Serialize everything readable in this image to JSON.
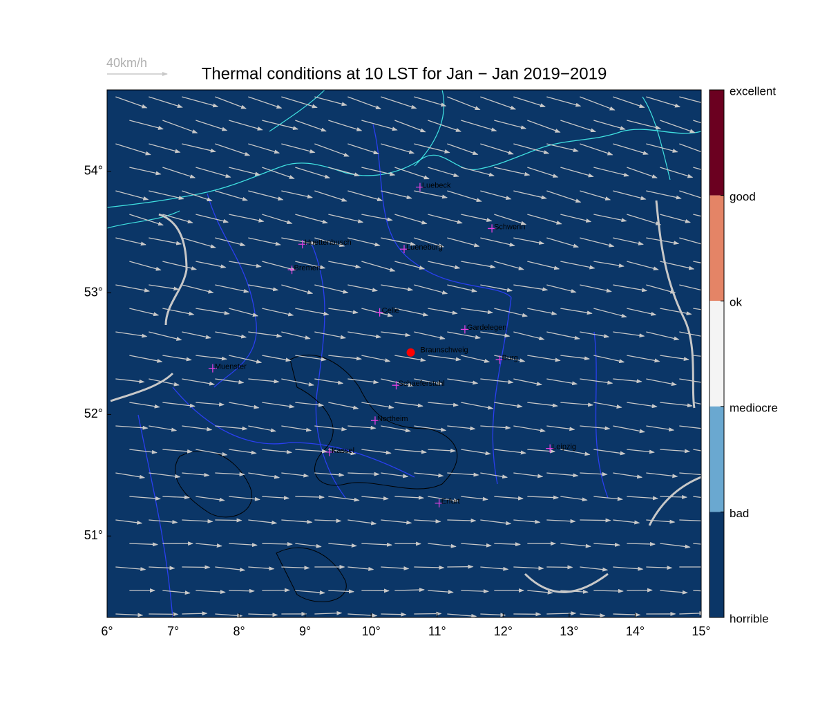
{
  "title": "Thermal conditions at 10 LST for Jan − Jan  2019−2019",
  "wind_legend": "40km/h",
  "map": {
    "xlim": [
      6,
      15
    ],
    "ylim": [
      50.33,
      54.67
    ],
    "xticks": [
      {
        "value": 6,
        "label": "6°"
      },
      {
        "value": 7,
        "label": "7°"
      },
      {
        "value": 8,
        "label": "8°"
      },
      {
        "value": 9,
        "label": "9°"
      },
      {
        "value": 10,
        "label": "10°"
      },
      {
        "value": 11,
        "label": "11°"
      },
      {
        "value": 12,
        "label": "12°"
      },
      {
        "value": 13,
        "label": "13°"
      },
      {
        "value": 14,
        "label": "14°"
      },
      {
        "value": 15,
        "label": "15°"
      }
    ],
    "yticks": [
      {
        "value": 51,
        "label": "51°"
      },
      {
        "value": 52,
        "label": "52°"
      },
      {
        "value": 53,
        "label": "53°"
      },
      {
        "value": 54,
        "label": "54°"
      }
    ]
  },
  "cities": [
    {
      "name": "Luebeck",
      "lon": 10.74,
      "lat": 53.87
    },
    {
      "name": "Schwerin",
      "lon": 11.83,
      "lat": 53.53
    },
    {
      "name": "Huettenbusch",
      "lon": 8.96,
      "lat": 53.4
    },
    {
      "name": "Lueneburg",
      "lon": 10.5,
      "lat": 53.36
    },
    {
      "name": "Bremen",
      "lon": 8.8,
      "lat": 53.19
    },
    {
      "name": "Celle",
      "lon": 10.13,
      "lat": 52.84
    },
    {
      "name": "Gardelegen",
      "lon": 11.42,
      "lat": 52.7
    },
    {
      "name": "Burg",
      "lon": 11.95,
      "lat": 52.45
    },
    {
      "name": "Muenster",
      "lon": 7.6,
      "lat": 52.38
    },
    {
      "name": "Schaeferstuhl",
      "lon": 10.38,
      "lat": 52.24
    },
    {
      "name": "Northeim",
      "lon": 10.06,
      "lat": 51.95
    },
    {
      "name": "Kassel",
      "lon": 9.37,
      "lat": 51.69
    },
    {
      "name": "Leipzig",
      "lon": 12.71,
      "lat": 51.72
    },
    {
      "name": "Erfurt",
      "lon": 11.03,
      "lat": 51.27
    }
  ],
  "site": {
    "name": "Braunschweig",
    "lon": 10.6,
    "lat": 52.51,
    "color": "#ff0000"
  },
  "colorbar": {
    "labels": [
      "excellent",
      "good",
      "ok",
      "mediocre",
      "bad",
      "horrible"
    ],
    "colors": [
      "#6b0020",
      "#e48466",
      "#f4f4f4",
      "#6aa8d0",
      "#0b3667"
    ]
  }
}
